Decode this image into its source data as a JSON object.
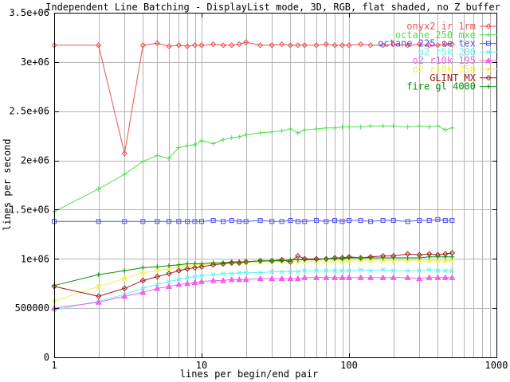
{
  "title": "Independent Line Batching - DisplayList mode, 3D, RGB, flat shaded, no Z buffer",
  "axes": {
    "x": {
      "label": "lines per begin/end pair",
      "scale": "log",
      "ticks": [
        "1",
        "10",
        "100",
        "1000"
      ]
    },
    "y": {
      "label": "lines per second",
      "ticks": [
        "0",
        "500000",
        "1e+06",
        "1.5e+06",
        "2e+06",
        "2.5e+06",
        "3e+06",
        "3.5e+06"
      ]
    }
  },
  "colors": {
    "background": "#ffffff",
    "grid": "#b4b4b4",
    "axis": "#000000",
    "text": "#000000"
  },
  "chart_data": {
    "type": "line",
    "title": "Independent Line Batching - DisplayList mode, 3D, RGB, flat shaded, no Z buffer",
    "xlabel": "lines per begin/end pair",
    "ylabel": "lines per second",
    "xscale": "log",
    "xlim": [
      1,
      1000
    ],
    "ylim": [
      0,
      3500000
    ],
    "xtick_values": [
      1,
      10,
      100,
      1000
    ],
    "ytick_values": [
      0,
      500000,
      1000000,
      1500000,
      2000000,
      2500000,
      3000000,
      3500000
    ],
    "grid": true,
    "legend_position": "top-right",
    "x": [
      1,
      2,
      3,
      4,
      5,
      6,
      7,
      8,
      9,
      10,
      12,
      14,
      16,
      18,
      20,
      25,
      30,
      35,
      40,
      45,
      50,
      60,
      70,
      80,
      90,
      100,
      120,
      140,
      170,
      200,
      250,
      300,
      350,
      400,
      450,
      500
    ],
    "series": [
      {
        "name": "onyx2 ir 1rm",
        "color": "#f25050",
        "marker": "diamond",
        "values": [
          3170000,
          3170000,
          2070000,
          3170000,
          3190000,
          3160000,
          3170000,
          3160000,
          3170000,
          3170000,
          3180000,
          3170000,
          3170000,
          3180000,
          3200000,
          3170000,
          3170000,
          3180000,
          3170000,
          3170000,
          3170000,
          3170000,
          3180000,
          3170000,
          3170000,
          3170000,
          3180000,
          3170000,
          3170000,
          3180000,
          3170000,
          3180000,
          3170000,
          3170000,
          3180000,
          3180000
        ]
      },
      {
        "name": "octane 250 mxe",
        "color": "#50e050",
        "marker": "plus",
        "values": [
          1480000,
          1710000,
          1860000,
          1990000,
          2050000,
          2020000,
          2130000,
          2150000,
          2160000,
          2200000,
          2170000,
          2210000,
          2230000,
          2240000,
          2260000,
          2280000,
          2290000,
          2300000,
          2320000,
          2280000,
          2310000,
          2320000,
          2330000,
          2330000,
          2340000,
          2340000,
          2340000,
          2350000,
          2350000,
          2350000,
          2340000,
          2350000,
          2340000,
          2350000,
          2310000,
          2330000
        ]
      },
      {
        "name": "octane 225 se tex",
        "color": "#5050f0",
        "marker": "square",
        "values": [
          1380000,
          1380000,
          1380000,
          1380000,
          1380000,
          1380000,
          1380000,
          1380000,
          1380000,
          1380000,
          1390000,
          1380000,
          1390000,
          1380000,
          1380000,
          1390000,
          1380000,
          1380000,
          1390000,
          1380000,
          1380000,
          1390000,
          1380000,
          1390000,
          1380000,
          1390000,
          1390000,
          1380000,
          1390000,
          1390000,
          1380000,
          1390000,
          1390000,
          1400000,
          1390000,
          1390000
        ]
      },
      {
        "name": "o2 r5k 200",
        "color": "#60f0f0",
        "marker": "times",
        "values": [
          480000,
          570000,
          640000,
          700000,
          740000,
          770000,
          790000,
          810000,
          820000,
          830000,
          840000,
          850000,
          850000,
          860000,
          860000,
          860000,
          870000,
          870000,
          870000,
          870000,
          880000,
          880000,
          880000,
          880000,
          880000,
          880000,
          890000,
          880000,
          890000,
          880000,
          880000,
          880000,
          890000,
          880000,
          880000,
          880000
        ]
      },
      {
        "name": "o2 r10k 195",
        "color": "#f060f0",
        "marker": "triangle",
        "values": [
          500000,
          560000,
          620000,
          660000,
          700000,
          720000,
          740000,
          750000,
          760000,
          770000,
          780000,
          780000,
          790000,
          790000,
          790000,
          800000,
          800000,
          800000,
          800000,
          800000,
          810000,
          810000,
          810000,
          810000,
          810000,
          810000,
          810000,
          810000,
          810000,
          810000,
          810000,
          800000,
          810000,
          810000,
          810000,
          810000
        ]
      },
      {
        "name": "o2 r10k 250",
        "color": "#f0f050",
        "marker": "star",
        "values": [
          570000,
          720000,
          800000,
          860000,
          880000,
          900000,
          920000,
          930000,
          940000,
          940000,
          950000,
          950000,
          960000,
          960000,
          960000,
          970000,
          970000,
          970000,
          970000,
          970000,
          970000,
          970000,
          970000,
          980000,
          980000,
          980000,
          980000,
          980000,
          980000,
          980000,
          980000,
          980000,
          980000,
          980000,
          980000,
          980000
        ]
      },
      {
        "name": "GLINT MX",
        "color": "#a02020",
        "marker": "diamond",
        "values": [
          720000,
          620000,
          700000,
          780000,
          820000,
          850000,
          880000,
          900000,
          910000,
          920000,
          940000,
          950000,
          960000,
          960000,
          970000,
          980000,
          980000,
          990000,
          970000,
          1030000,
          1000000,
          1000000,
          1000000,
          1010000,
          1010000,
          1020000,
          1010000,
          1020000,
          1030000,
          1030000,
          1050000,
          1040000,
          1050000,
          1040000,
          1050000,
          1060000
        ]
      },
      {
        "name": "fire gl 4000",
        "color": "#009000",
        "marker": "plus",
        "values": [
          730000,
          840000,
          880000,
          910000,
          920000,
          930000,
          940000,
          950000,
          950000,
          950000,
          960000,
          960000,
          970000,
          970000,
          970000,
          980000,
          980000,
          980000,
          990000,
          990000,
          990000,
          990000,
          1000000,
          1000000,
          1000000,
          1010000,
          1010000,
          1010000,
          1010000,
          1010000,
          1010000,
          1010000,
          1020000,
          1020000,
          1020000,
          1020000
        ]
      }
    ]
  }
}
